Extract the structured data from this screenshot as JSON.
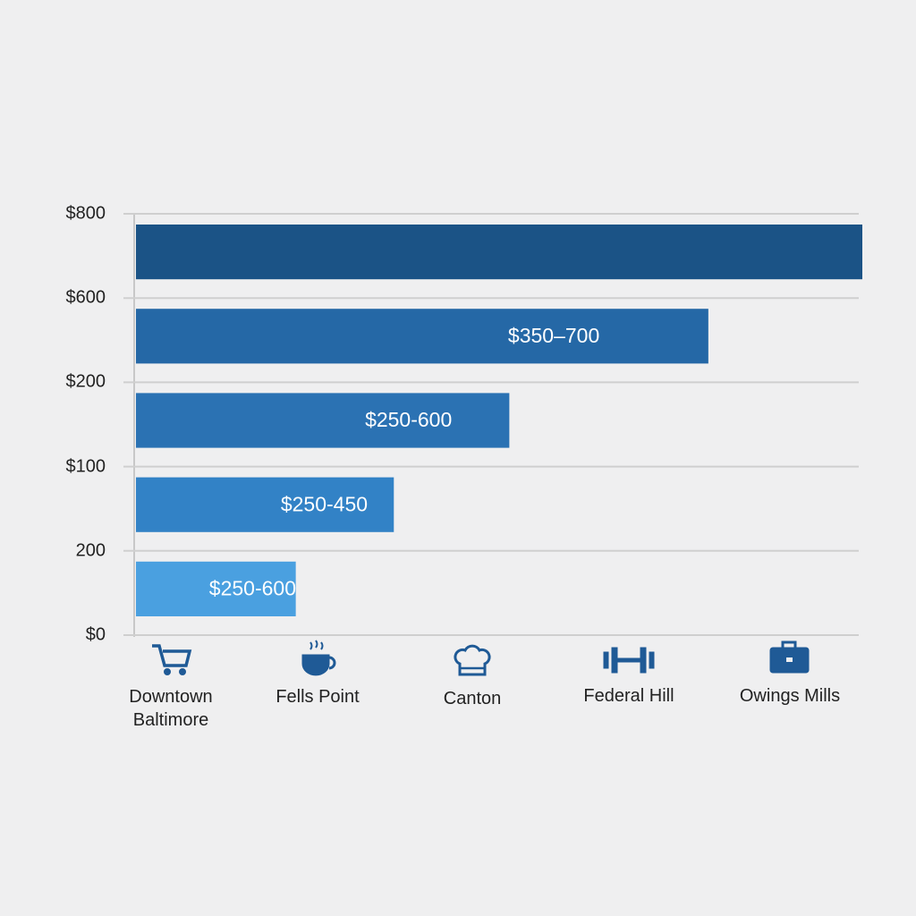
{
  "chart_data": {
    "type": "hbar",
    "row_labels": [
      "$800",
      "$600",
      "$200",
      "$100",
      "200",
      "$0"
    ],
    "categories": [
      "Downtown Baltimore",
      "Fells Point",
      "Canton",
      "Federal Hill",
      "Owings Mills"
    ],
    "values": [
      100,
      78.8,
      51.4,
      35.5,
      22
    ],
    "bar_labels": [
      null,
      "$350–700",
      "$250-600",
      "$250-450",
      "$250-600"
    ],
    "colors": [
      "#1b5386",
      "#2568a6",
      "#2b72b3",
      "#3282c6",
      "#4aa0e0"
    ],
    "xlim": [
      0,
      100
    ],
    "grid": true
  }
}
